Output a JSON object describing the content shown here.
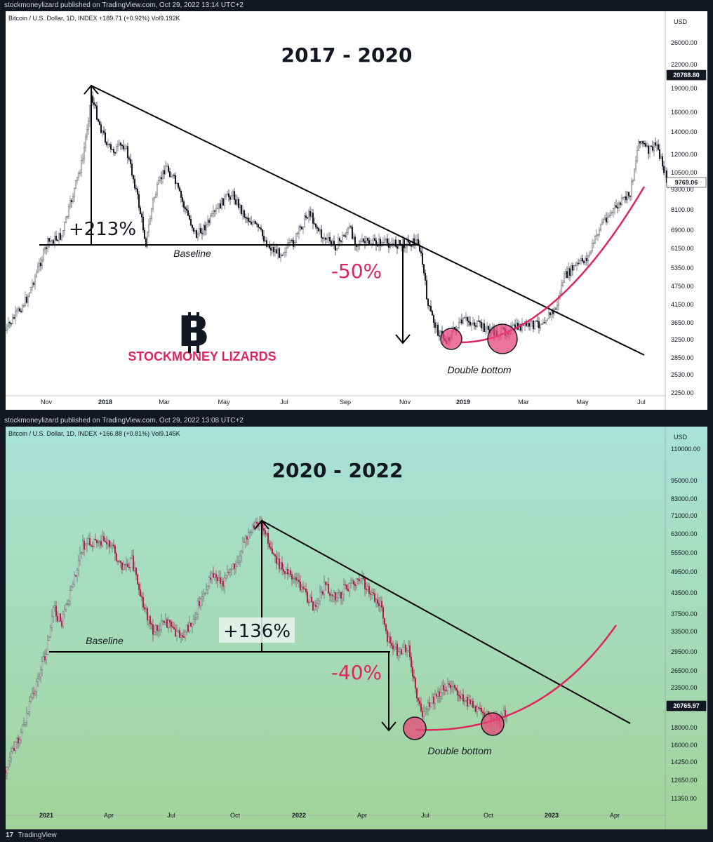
{
  "chart_data": [
    {
      "type": "candlestick",
      "header": "stockmoneylizard published on TradingView.com, Oct 29, 2022 13:14 UTC+2",
      "symbol_line": "Bitcoin / U.S. Dollar, 1D, INDEX +189.71 (+0.92%) Vol9.192K",
      "title": "2017 - 2020",
      "currency": "USD",
      "scale": "log",
      "ylim": [
        2100,
        32000
      ],
      "y_ticks": [
        "26000.00",
        "22000.00",
        "19000.00",
        "16000.00",
        "14000.00",
        "12000.00",
        "10500.00",
        "9300.00",
        "8100.00",
        "6900.00",
        "6150.00",
        "5350.00",
        "4750.00",
        "4150.00",
        "3650.00",
        "3250.00",
        "2850.00",
        "2530.00",
        "2250.00"
      ],
      "x_ticks": [
        "Nov",
        "2018",
        "Mar",
        "May",
        "Jul",
        "Sep",
        "Nov",
        "2019",
        "Mar",
        "May",
        "Jul"
      ],
      "price_labels": [
        "20788.80",
        "9769.06"
      ],
      "annotations": {
        "rise": "+213%",
        "fall": "-50%",
        "baseline": "Baseline",
        "double_bottom": "Double bottom",
        "brand": "STOCKMONEY LIZARDS",
        "logo_glyph": "B"
      },
      "background": "#ffffff"
    },
    {
      "type": "candlestick",
      "header": "stockmoneylizard published on TradingView.com, Oct 29, 2022 13:08 UTC+2",
      "symbol_line": "Bitcoin / U.S. Dollar, 1D, INDEX +166.88 (+0.81%) Vol9.145K",
      "title": "2020 - 2022",
      "currency": "USD",
      "scale": "log",
      "ylim": [
        10500,
        125000
      ],
      "y_ticks": [
        "110000.00",
        "95000.00",
        "83000.00",
        "71000.00",
        "63000.00",
        "55500.00",
        "49500.00",
        "43500.00",
        "37500.00",
        "33500.00",
        "29500.00",
        "26500.00",
        "23500.00",
        "18000.00",
        "16000.00",
        "14250.00",
        "12650.00",
        "11350.00"
      ],
      "x_ticks": [
        "2021",
        "Apr",
        "Jul",
        "Oct",
        "2022",
        "Apr",
        "Jul",
        "Oct",
        "2023",
        "Apr"
      ],
      "price_labels": [
        "20765.97"
      ],
      "annotations": {
        "rise": "+136%",
        "fall": "-40%",
        "baseline": "Baseline",
        "double_bottom": "Double bottom"
      },
      "background_gradient": [
        "#a8e2d6",
        "#a2d39a"
      ]
    }
  ],
  "footer": {
    "logo": "17",
    "text": "TradingView"
  }
}
